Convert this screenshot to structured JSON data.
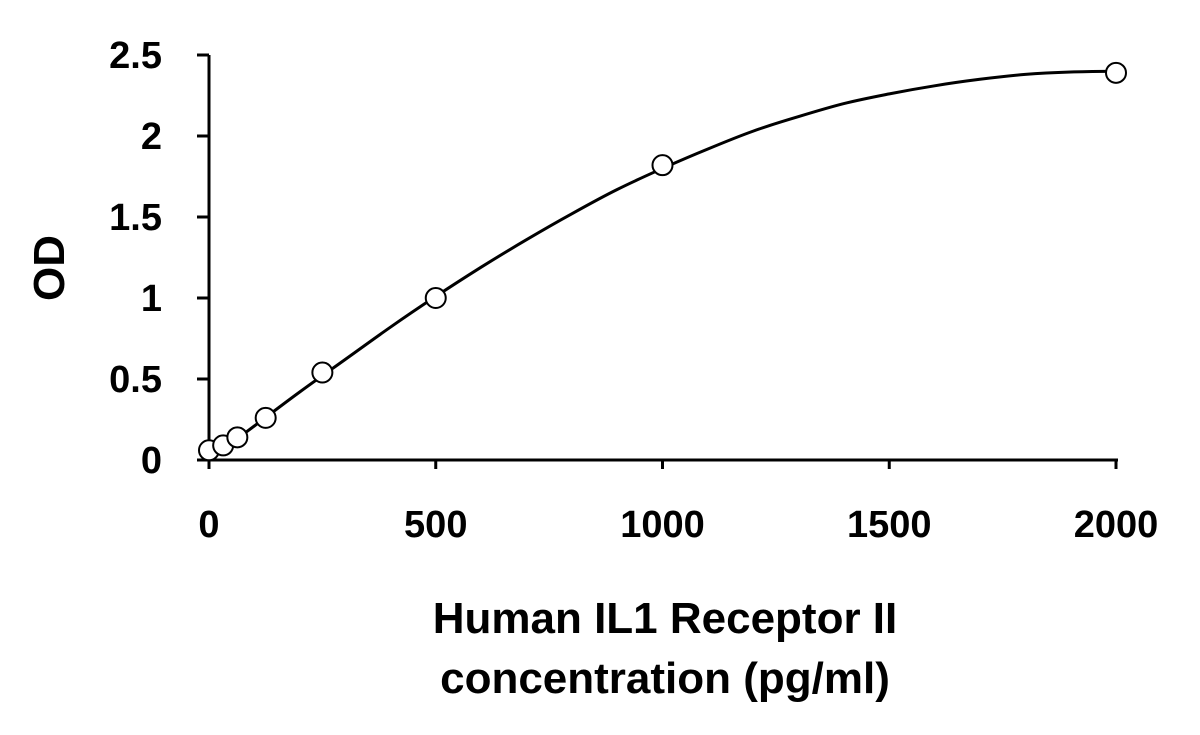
{
  "chart_data": {
    "type": "scatter",
    "title": "",
    "xlabel_lines": [
      "Human IL1 Receptor II",
      "concentration (pg/ml)"
    ],
    "ylabel": "OD",
    "xlim": [
      0,
      2000
    ],
    "ylim": [
      0,
      2.5
    ],
    "x_ticks": [
      0,
      500,
      1000,
      1500,
      2000
    ],
    "y_ticks": [
      0,
      0.5,
      1,
      1.5,
      2,
      2.5
    ],
    "x_tick_labels": [
      "0",
      "500",
      "1000",
      "1500",
      "2000"
    ],
    "y_tick_labels": [
      "0",
      "0.5",
      "1",
      "1.5",
      "2",
      "2.5"
    ],
    "grid": false,
    "legend": "none",
    "series": [
      {
        "marker": "open-circle",
        "x": [
          0,
          31.25,
          62.5,
          125,
          250,
          500,
          1000,
          2000
        ],
        "y": [
          0.06,
          0.09,
          0.14,
          0.26,
          0.54,
          1.0,
          1.82,
          2.39
        ]
      }
    ],
    "fit_curve": {
      "x": [
        0,
        100,
        200,
        300,
        400,
        500,
        600,
        700,
        800,
        900,
        1000,
        1100,
        1200,
        1300,
        1400,
        1500,
        1600,
        1700,
        1800,
        1900,
        2000
      ],
      "y": [
        0.0,
        0.21,
        0.42,
        0.62,
        0.82,
        1.01,
        1.19,
        1.36,
        1.52,
        1.67,
        1.8,
        1.92,
        2.03,
        2.12,
        2.2,
        2.26,
        2.31,
        2.35,
        2.38,
        2.395,
        2.4
      ]
    },
    "colors": {
      "line": "#000000",
      "marker_fill": "#ffffff",
      "text": "#000000"
    }
  }
}
